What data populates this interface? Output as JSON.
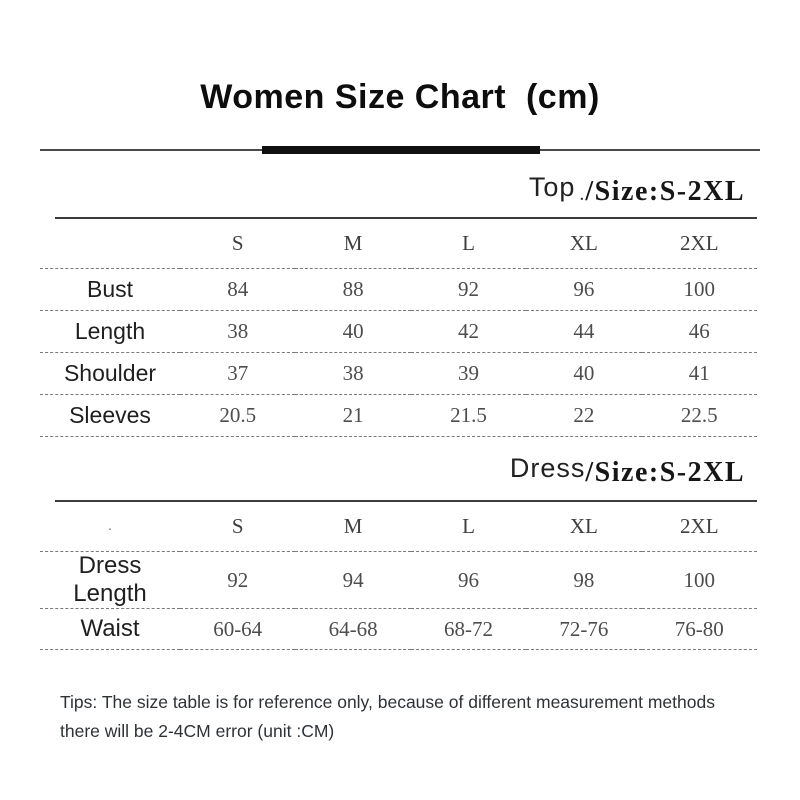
{
  "title": "Women Size Chart  (cm)",
  "sections": [
    {
      "name": "Top",
      "dot": ".",
      "size_range": "/Size:S-2XL"
    },
    {
      "name": "Dress",
      "size_range": "/Size:S-2XL"
    }
  ],
  "tables": [
    {
      "headers": [
        "S",
        "M",
        "L",
        "XL",
        "2XL"
      ],
      "rows": [
        {
          "label": "Bust",
          "values": [
            "84",
            "88",
            "92",
            "96",
            "100"
          ]
        },
        {
          "label": "Length",
          "values": [
            "38",
            "40",
            "42",
            "44",
            "46"
          ]
        },
        {
          "label": "Shoulder",
          "values": [
            "37",
            "38",
            "39",
            "40",
            "41"
          ]
        },
        {
          "label": "Sleeves",
          "values": [
            "20.5",
            "21",
            "21.5",
            "22",
            "22.5"
          ]
        }
      ]
    },
    {
      "header_note": ".",
      "headers": [
        "S",
        "M",
        "L",
        "XL",
        "2XL"
      ],
      "rows": [
        {
          "label": "Dress Length",
          "values": [
            "92",
            "94",
            "96",
            "98",
            "100"
          ]
        },
        {
          "label": "Waist",
          "values": [
            "60-64",
            "64-68",
            "68-72",
            "72-76",
            "76-80"
          ]
        }
      ]
    }
  ],
  "tips": {
    "line1": "Tips: The size table is for reference only, because of different measurement methods",
    "line2": "there will be 2-4CM error (unit :CM)"
  },
  "colors": {
    "title_text": "#0d0d0d",
    "label_text": "#1f1f1f",
    "value_text": "#4d4d4d",
    "rule_solid": "#3c3c3c",
    "rule_dashed": "#7a7a7a",
    "accent_bar": "#101010"
  }
}
